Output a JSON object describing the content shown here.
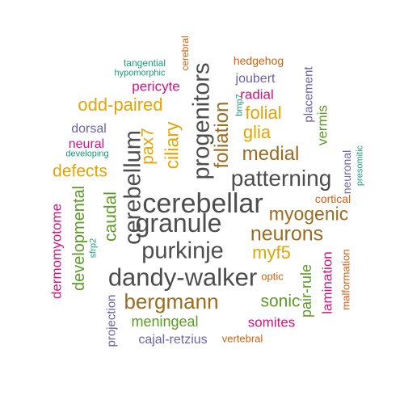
{
  "colors": {
    "dark_gray": "#4d4d4d",
    "brown": "#9c6b1e",
    "gold": "#e6a400",
    "green": "#5c9a25",
    "magenta": "#d6137c",
    "purple": "#6d62a8",
    "teal": "#1a9b78",
    "orange": "#d35f0d"
  },
  "words": [
    {
      "text": "cerebellar",
      "color": "dark_gray"
    },
    {
      "text": "dandy-walker",
      "color": "dark_gray"
    },
    {
      "text": "cerebellum",
      "color": "dark_gray"
    },
    {
      "text": "progenitors",
      "color": "dark_gray"
    },
    {
      "text": "granule",
      "color": "dark_gray"
    },
    {
      "text": "patterning",
      "color": "dark_gray"
    },
    {
      "text": "purkinje",
      "color": "dark_gray"
    },
    {
      "text": "foliation",
      "color": "brown"
    },
    {
      "text": "neurons",
      "color": "brown"
    },
    {
      "text": "myogenic",
      "color": "brown"
    },
    {
      "text": "bergmann",
      "color": "brown"
    },
    {
      "text": "medial",
      "color": "brown"
    },
    {
      "text": "folial",
      "color": "gold"
    },
    {
      "text": "odd-paired",
      "color": "gold"
    },
    {
      "text": "glia",
      "color": "gold"
    },
    {
      "text": "myf5",
      "color": "gold"
    },
    {
      "text": "defects",
      "color": "gold"
    },
    {
      "text": "pax7",
      "color": "gold"
    },
    {
      "text": "ciliary",
      "color": "gold"
    },
    {
      "text": "caudal",
      "color": "green"
    },
    {
      "text": "developmental",
      "color": "green"
    },
    {
      "text": "sonic",
      "color": "green"
    },
    {
      "text": "pair-rule",
      "color": "green"
    },
    {
      "text": "meningeal",
      "color": "green"
    },
    {
      "text": "vermis",
      "color": "green"
    },
    {
      "text": "pericyte",
      "color": "magenta"
    },
    {
      "text": "radial",
      "color": "magenta"
    },
    {
      "text": "neural",
      "color": "magenta"
    },
    {
      "text": "dermomyotome",
      "color": "magenta"
    },
    {
      "text": "somites",
      "color": "magenta"
    },
    {
      "text": "lamination",
      "color": "magenta"
    },
    {
      "text": "joubert",
      "color": "purple"
    },
    {
      "text": "dorsal",
      "color": "purple"
    },
    {
      "text": "placement",
      "color": "purple"
    },
    {
      "text": "neuronal",
      "color": "purple"
    },
    {
      "text": "cajal-retzius",
      "color": "purple"
    },
    {
      "text": "projection",
      "color": "purple"
    },
    {
      "text": "tangential",
      "color": "teal"
    },
    {
      "text": "hypomorphic",
      "color": "teal"
    },
    {
      "text": "developing",
      "color": "teal"
    },
    {
      "text": "bmp7",
      "color": "teal"
    },
    {
      "text": "sfrp2",
      "color": "teal"
    },
    {
      "text": "presomitic",
      "color": "teal"
    },
    {
      "text": "hedgehog",
      "color": "orange"
    },
    {
      "text": "cerebral",
      "color": "orange"
    },
    {
      "text": "cortical",
      "color": "orange"
    },
    {
      "text": "optic",
      "color": "orange"
    },
    {
      "text": "vertebral",
      "color": "orange"
    },
    {
      "text": "malformation",
      "color": "orange"
    }
  ]
}
